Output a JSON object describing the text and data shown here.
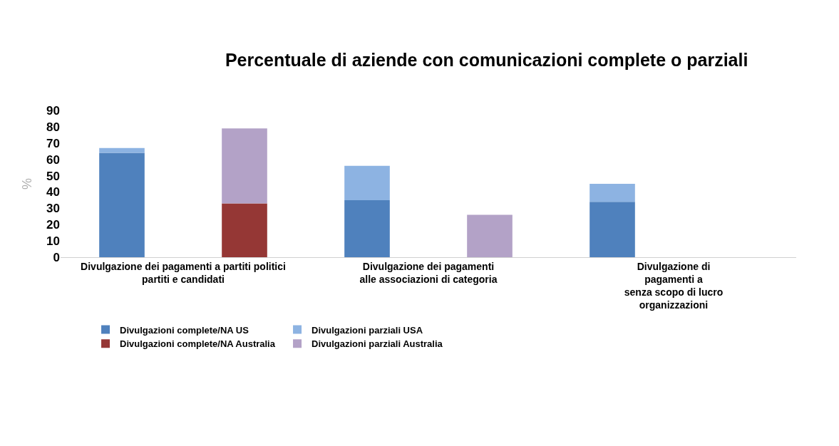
{
  "chart_data": {
    "type": "bar",
    "stacked": true,
    "title": "Percentuale di aziende con comunicazioni complete o parziali",
    "ylabel": "%",
    "categories": [
      "Divulgazione dei pagamenti a partiti politici\npartiti e candidati",
      null,
      "Divulgazione dei pagamenti\nalle associazioni di categoria",
      null,
      "Divulgazione di\npagamenti a\nsenza scopo di lucro\norganizzazioni",
      null
    ],
    "series": [
      {
        "name": "Divulgazioni complete/NA US",
        "color": "#4f81bd",
        "values": [
          64,
          null,
          35,
          null,
          34,
          null
        ]
      },
      {
        "name": "Divulgazioni parziali USA",
        "color": "#8db3e2",
        "values": [
          3,
          null,
          21,
          null,
          11,
          null
        ]
      },
      {
        "name": "Divulgazioni complete/NA Australia",
        "color": "#953735",
        "values": [
          null,
          33,
          null,
          null,
          null,
          null
        ]
      },
      {
        "name": "Divulgazioni parziali Australia",
        "color": "#b3a2c7",
        "values": [
          null,
          46,
          null,
          26,
          null,
          null
        ]
      }
    ],
    "ylim": [
      0,
      90
    ],
    "yticks": [
      0,
      10,
      20,
      30,
      40,
      50,
      60,
      70,
      80,
      90
    ],
    "legend": "bottom"
  }
}
